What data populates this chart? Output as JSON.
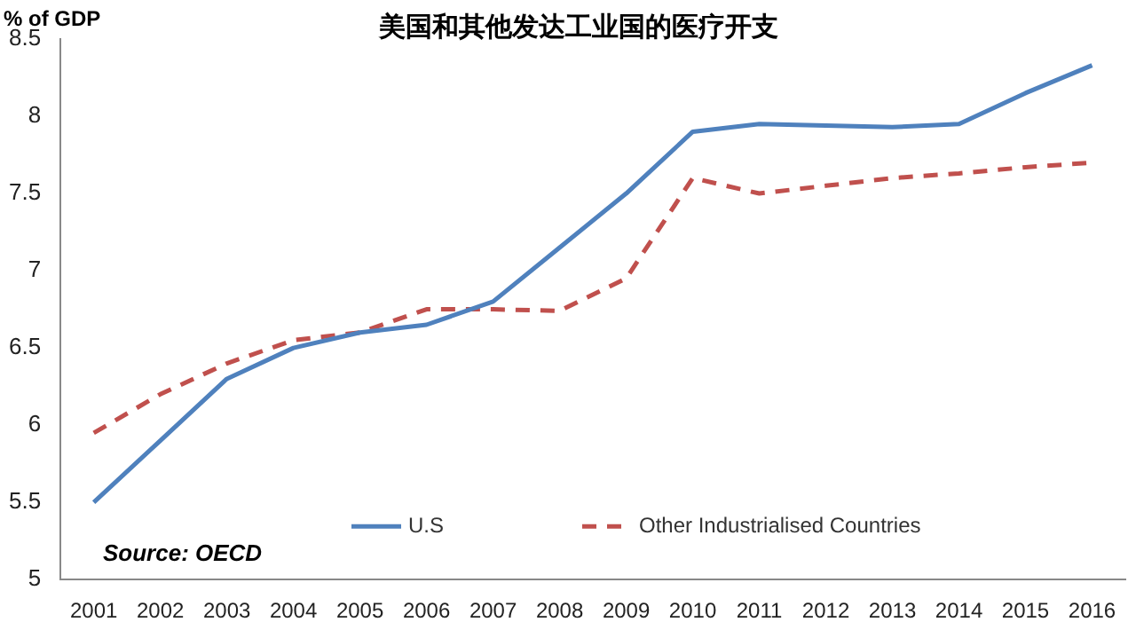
{
  "chart_data": {
    "type": "line",
    "title": "美国和其他发达工业国的医疗开支",
    "ylabel": "% of GDP",
    "categories": [
      "2001",
      "2002",
      "2003",
      "2004",
      "2005",
      "2006",
      "2007",
      "2008",
      "2009",
      "2010",
      "2011",
      "2012",
      "2013",
      "2014",
      "2015",
      "2016"
    ],
    "series": [
      {
        "name": "U.S",
        "color": "#4f81bd",
        "line_style": "solid",
        "values": [
          5.5,
          5.9,
          6.3,
          6.5,
          6.6,
          6.65,
          6.8,
          7.15,
          7.5,
          7.9,
          7.95,
          7.94,
          7.93,
          7.95,
          8.15,
          8.33
        ]
      },
      {
        "name": "Other Industrialised Countries",
        "color": "#c0504d",
        "line_style": "dashed",
        "values": [
          5.95,
          6.2,
          6.4,
          6.55,
          6.6,
          6.75,
          6.75,
          6.74,
          6.95,
          7.6,
          7.5,
          7.55,
          7.6,
          7.63,
          7.67,
          7.7
        ]
      }
    ],
    "ylim": [
      5,
      8.5
    ],
    "yticks": [
      5,
      5.5,
      6,
      6.5,
      7,
      7.5,
      8,
      8.5
    ],
    "grid": false,
    "legend": "bottom",
    "marker": "none",
    "annotations": [
      "Source: OECD"
    ]
  }
}
